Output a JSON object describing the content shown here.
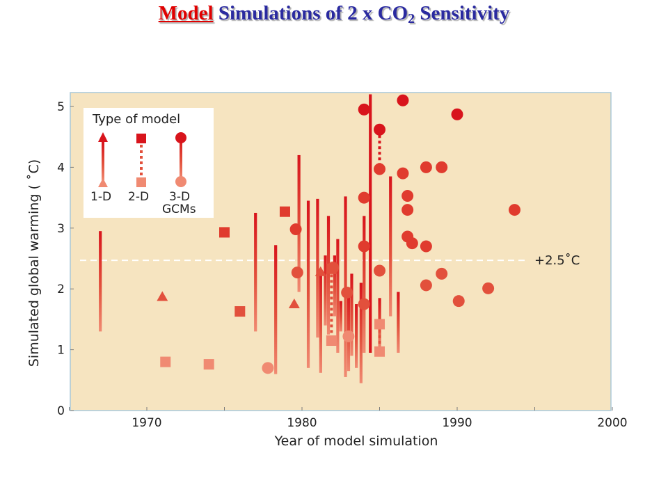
{
  "title": {
    "model": "Model",
    "rest": "Simulations of 2 x CO",
    "subscript": "2",
    "end": "Sensitivity"
  },
  "colors": {
    "background": "#f6e4c0",
    "dark_red": "#d8141c",
    "mid_red": "#e2503c",
    "light": "#f08a72",
    "border": "#a9c8d8",
    "reference_line": "#ffffff"
  },
  "chart_data": {
    "type": "scatter",
    "xlabel": "Year of model simulation",
    "ylabel": "Simulated global warming ( ˚C)",
    "xlim": [
      1965,
      2000
    ],
    "ylim": [
      0,
      5.2
    ],
    "x_ticks": [
      1970,
      1980,
      1990,
      2000
    ],
    "y_ticks": [
      0,
      1,
      2,
      3,
      4,
      5
    ],
    "x_tick_labels": [
      "1970",
      "1980",
      "1990",
      "2000"
    ],
    "y_tick_labels": [
      "0",
      "1",
      "2",
      "3",
      "4",
      "5"
    ],
    "grid": false,
    "reference_line": {
      "y": 2.47,
      "label": "+2.5˚C"
    },
    "legend": {
      "title": "Type of model",
      "position": "top-left",
      "entries": [
        {
          "marker": "triangle",
          "label": "1-D"
        },
        {
          "marker": "square",
          "label": "2-D"
        },
        {
          "marker": "circle",
          "label": "3-D",
          "sublabel": "GCMs"
        }
      ]
    },
    "ranges_1d": [
      {
        "x": 1967.0,
        "low": 1.3,
        "high": 2.95
      },
      {
        "x": 1977.0,
        "low": 1.3,
        "high": 3.25
      },
      {
        "x": 1978.3,
        "low": 0.6,
        "high": 2.72
      },
      {
        "x": 1979.8,
        "low": 1.95,
        "high": 4.2
      },
      {
        "x": 1980.4,
        "low": 0.7,
        "high": 3.45
      },
      {
        "x": 1981.0,
        "low": 1.2,
        "high": 3.48
      },
      {
        "x": 1981.2,
        "low": 0.62,
        "high": 2.3
      },
      {
        "x": 1981.5,
        "low": 1.4,
        "high": 2.55
      },
      {
        "x": 1981.7,
        "low": 1.25,
        "high": 3.2
      },
      {
        "x": 1982.1,
        "low": 1.55,
        "high": 2.55
      },
      {
        "x": 1982.3,
        "low": 0.95,
        "high": 2.82
      },
      {
        "x": 1982.5,
        "low": 1.3,
        "high": 1.8
      },
      {
        "x": 1982.8,
        "low": 0.55,
        "high": 3.52
      },
      {
        "x": 1983.0,
        "low": 0.65,
        "high": 1.95
      },
      {
        "x": 1983.2,
        "low": 0.9,
        "high": 2.25
      },
      {
        "x": 1983.5,
        "low": 0.7,
        "high": 1.75
      },
      {
        "x": 1983.8,
        "low": 0.45,
        "high": 2.1
      },
      {
        "x": 1984.0,
        "low": 0.95,
        "high": 3.2
      },
      {
        "x": 1984.4,
        "low": 0.95,
        "high": 5.2
      },
      {
        "x": 1985.0,
        "low": 1.0,
        "high": 1.85
      },
      {
        "x": 1985.7,
        "low": 1.55,
        "high": 3.85
      },
      {
        "x": 1986.2,
        "low": 0.95,
        "high": 1.95
      }
    ],
    "triangles_1d": [
      {
        "x": 1971.0,
        "y": 1.87
      },
      {
        "x": 1979.5,
        "y": 1.75
      },
      {
        "x": 1981.2,
        "y": 2.28
      }
    ],
    "squares_2d": [
      {
        "x": 1971.2,
        "y": 0.8
      },
      {
        "x": 1974.0,
        "y": 0.76
      },
      {
        "x": 1975.0,
        "y": 2.93
      },
      {
        "x": 1976.0,
        "y": 1.63
      },
      {
        "x": 1978.9,
        "y": 3.27
      },
      {
        "x": 1981.9,
        "y": 2.33
      },
      {
        "x": 1981.9,
        "y": 1.15
      },
      {
        "x": 1985.0,
        "y": 1.42
      },
      {
        "x": 1985.0,
        "y": 0.97
      }
    ],
    "pairs_2d": [
      {
        "x": 1981.9,
        "low": 1.15,
        "high": 2.33
      },
      {
        "x": 1985.0,
        "low": 0.97,
        "high": 1.42
      }
    ],
    "circles_3d": [
      {
        "x": 1977.8,
        "y": 0.7
      },
      {
        "x": 1979.6,
        "y": 2.98
      },
      {
        "x": 1979.7,
        "y": 2.27
      },
      {
        "x": 1982.0,
        "y": 2.35
      },
      {
        "x": 1982.9,
        "y": 1.94
      },
      {
        "x": 1983.0,
        "y": 1.22
      },
      {
        "x": 1984.0,
        "y": 4.95
      },
      {
        "x": 1984.0,
        "y": 3.5
      },
      {
        "x": 1984.0,
        "y": 2.7
      },
      {
        "x": 1984.0,
        "y": 1.75
      },
      {
        "x": 1985.0,
        "y": 4.62
      },
      {
        "x": 1985.0,
        "y": 3.97
      },
      {
        "x": 1985.0,
        "y": 2.3
      },
      {
        "x": 1986.5,
        "y": 5.1
      },
      {
        "x": 1986.5,
        "y": 3.9
      },
      {
        "x": 1986.8,
        "y": 3.53
      },
      {
        "x": 1986.8,
        "y": 3.3
      },
      {
        "x": 1986.8,
        "y": 2.86
      },
      {
        "x": 1987.1,
        "y": 2.75
      },
      {
        "x": 1988.0,
        "y": 4.0
      },
      {
        "x": 1988.0,
        "y": 2.7
      },
      {
        "x": 1988.0,
        "y": 2.06
      },
      {
        "x": 1989.0,
        "y": 4.0
      },
      {
        "x": 1989.0,
        "y": 2.25
      },
      {
        "x": 1990.0,
        "y": 4.87
      },
      {
        "x": 1990.1,
        "y": 1.8
      },
      {
        "x": 1992.0,
        "y": 2.01
      },
      {
        "x": 1993.7,
        "y": 3.3
      }
    ],
    "pairs_3d": [
      {
        "x": 1985.0,
        "low": 3.97,
        "high": 4.62
      }
    ]
  }
}
